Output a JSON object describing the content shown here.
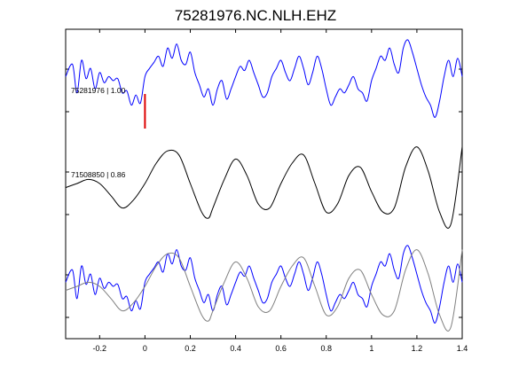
{
  "chart_data": {
    "type": "line",
    "title": "75281976.NC.NLH.EHZ",
    "xlabel": "",
    "ylabel": "",
    "xlim": [
      -0.35,
      1.4
    ],
    "x_ticks": [
      -0.2,
      0,
      0.2,
      0.4,
      0.6,
      0.8,
      1,
      1.2,
      1.4
    ],
    "x_tick_labels": [
      "-0.2",
      "0",
      "0.2",
      "0.4",
      "0.6",
      "0.8",
      "1",
      "1.2",
      "1.4"
    ],
    "grid": false,
    "pick_time": 0,
    "panels": [
      {
        "label": "75281976 | 1.00",
        "series": [
          {
            "color": "#0000ff",
            "x": [
              -0.35,
              -0.32,
              -0.3,
              -0.28,
              -0.26,
              -0.24,
              -0.22,
              -0.2,
              -0.18,
              -0.16,
              -0.14,
              -0.12,
              -0.1,
              -0.08,
              -0.06,
              -0.04,
              -0.02,
              0.0,
              0.02,
              0.04,
              0.06,
              0.08,
              0.1,
              0.12,
              0.14,
              0.16,
              0.18,
              0.2,
              0.22,
              0.24,
              0.26,
              0.28,
              0.3,
              0.32,
              0.34,
              0.36,
              0.38,
              0.4,
              0.42,
              0.44,
              0.46,
              0.48,
              0.5,
              0.52,
              0.54,
              0.56,
              0.58,
              0.6,
              0.62,
              0.64,
              0.66,
              0.68,
              0.7,
              0.72,
              0.74,
              0.76,
              0.78,
              0.8,
              0.82,
              0.84,
              0.86,
              0.88,
              0.9,
              0.92,
              0.94,
              0.96,
              0.98,
              1.0,
              1.02,
              1.04,
              1.06,
              1.08,
              1.1,
              1.12,
              1.14,
              1.16,
              1.18,
              1.2,
              1.22,
              1.24,
              1.26,
              1.28,
              1.3,
              1.32,
              1.34,
              1.36,
              1.38,
              1.4
            ],
            "y": [
              0.1,
              0.4,
              -0.3,
              0.5,
              0.05,
              0.3,
              -0.2,
              0.2,
              -0.05,
              0.1,
              0.0,
              0.05,
              -0.3,
              -0.25,
              -0.6,
              -0.35,
              -0.55,
              0.1,
              0.3,
              0.45,
              0.6,
              0.35,
              0.8,
              0.55,
              0.9,
              0.5,
              0.4,
              0.7,
              0.2,
              -0.1,
              -0.4,
              -0.2,
              -0.6,
              -0.2,
              0.0,
              -0.45,
              -0.2,
              0.1,
              0.35,
              0.25,
              0.5,
              0.2,
              -0.1,
              -0.4,
              -0.3,
              0.1,
              0.3,
              0.5,
              0.2,
              0.0,
              0.3,
              0.6,
              0.3,
              -0.1,
              0.2,
              0.6,
              0.3,
              -0.2,
              -0.6,
              -0.4,
              -0.2,
              -0.3,
              -0.1,
              0.1,
              -0.2,
              -0.3,
              -0.5,
              0.0,
              0.3,
              0.6,
              0.5,
              0.8,
              0.4,
              0.2,
              0.8,
              1.0,
              0.7,
              0.3,
              -0.1,
              -0.4,
              -0.6,
              -0.9,
              -0.5,
              0.1,
              0.5,
              0.1,
              0.55,
              0.1
            ]
          }
        ]
      },
      {
        "label": "71508850 | 0.86",
        "series": [
          {
            "color": "#000000",
            "x": [
              -0.35,
              -0.3,
              -0.25,
              -0.2,
              -0.15,
              -0.1,
              -0.05,
              0.0,
              0.05,
              0.1,
              0.15,
              0.2,
              0.25,
              0.28,
              0.3,
              0.35,
              0.4,
              0.45,
              0.5,
              0.55,
              0.6,
              0.65,
              0.7,
              0.75,
              0.8,
              0.85,
              0.9,
              0.95,
              1.0,
              1.05,
              1.1,
              1.15,
              1.2,
              1.25,
              1.3,
              1.35,
              1.4
            ],
            "y": [
              -0.1,
              0.0,
              0.1,
              0.0,
              -0.3,
              -0.6,
              -0.4,
              0.0,
              0.5,
              0.8,
              0.7,
              0.0,
              -0.7,
              -0.85,
              -0.6,
              0.1,
              0.6,
              0.2,
              -0.5,
              -0.6,
              0.0,
              0.5,
              0.7,
              0.0,
              -0.7,
              -0.5,
              0.2,
              0.4,
              -0.2,
              -0.7,
              -0.6,
              0.4,
              0.9,
              0.3,
              -0.7,
              -1.0,
              0.9
            ]
          }
        ]
      },
      {
        "label": "",
        "series": [
          {
            "color": "#0000ff",
            "x": [
              -0.35,
              -0.32,
              -0.3,
              -0.28,
              -0.26,
              -0.24,
              -0.22,
              -0.2,
              -0.18,
              -0.16,
              -0.14,
              -0.12,
              -0.1,
              -0.08,
              -0.06,
              -0.04,
              -0.02,
              0.0,
              0.02,
              0.04,
              0.06,
              0.08,
              0.1,
              0.12,
              0.14,
              0.16,
              0.18,
              0.2,
              0.22,
              0.24,
              0.26,
              0.28,
              0.3,
              0.32,
              0.34,
              0.36,
              0.38,
              0.4,
              0.42,
              0.44,
              0.46,
              0.48,
              0.5,
              0.52,
              0.54,
              0.56,
              0.58,
              0.6,
              0.62,
              0.64,
              0.66,
              0.68,
              0.7,
              0.72,
              0.74,
              0.76,
              0.78,
              0.8,
              0.82,
              0.84,
              0.86,
              0.88,
              0.9,
              0.92,
              0.94,
              0.96,
              0.98,
              1.0,
              1.02,
              1.04,
              1.06,
              1.08,
              1.1,
              1.12,
              1.14,
              1.16,
              1.18,
              1.2,
              1.22,
              1.24,
              1.26,
              1.28,
              1.3,
              1.32,
              1.34,
              1.36,
              1.38,
              1.4
            ],
            "y": [
              0.1,
              0.4,
              -0.3,
              0.5,
              0.05,
              0.3,
              -0.2,
              0.2,
              -0.05,
              0.1,
              0.0,
              0.05,
              -0.3,
              -0.25,
              -0.6,
              -0.35,
              -0.55,
              0.1,
              0.3,
              0.45,
              0.6,
              0.35,
              0.8,
              0.55,
              0.9,
              0.5,
              0.4,
              0.7,
              0.2,
              -0.1,
              -0.4,
              -0.2,
              -0.6,
              -0.2,
              0.0,
              -0.45,
              -0.2,
              0.1,
              0.35,
              0.25,
              0.5,
              0.2,
              -0.1,
              -0.4,
              -0.3,
              0.1,
              0.3,
              0.5,
              0.2,
              0.0,
              0.3,
              0.6,
              0.3,
              -0.1,
              0.2,
              0.6,
              0.3,
              -0.2,
              -0.6,
              -0.4,
              -0.2,
              -0.3,
              -0.1,
              0.1,
              -0.2,
              -0.3,
              -0.5,
              0.0,
              0.3,
              0.6,
              0.5,
              0.8,
              0.4,
              0.2,
              0.8,
              1.0,
              0.7,
              0.3,
              -0.1,
              -0.4,
              -0.6,
              -0.9,
              -0.5,
              0.1,
              0.5,
              0.1,
              0.55,
              0.1
            ]
          },
          {
            "color": "#808080",
            "x": [
              -0.35,
              -0.3,
              -0.25,
              -0.2,
              -0.15,
              -0.1,
              -0.05,
              0.0,
              0.05,
              0.1,
              0.15,
              0.2,
              0.25,
              0.28,
              0.3,
              0.35,
              0.4,
              0.45,
              0.5,
              0.55,
              0.6,
              0.65,
              0.7,
              0.75,
              0.8,
              0.85,
              0.9,
              0.95,
              1.0,
              1.05,
              1.1,
              1.15,
              1.2,
              1.25,
              1.3,
              1.35,
              1.4
            ],
            "y": [
              -0.1,
              0.0,
              0.1,
              0.0,
              -0.3,
              -0.6,
              -0.4,
              0.0,
              0.5,
              0.8,
              0.7,
              0.0,
              -0.7,
              -0.85,
              -0.6,
              0.1,
              0.6,
              0.2,
              -0.5,
              -0.6,
              0.0,
              0.5,
              0.7,
              0.0,
              -0.7,
              -0.5,
              0.2,
              0.4,
              -0.2,
              -0.7,
              -0.6,
              0.4,
              0.9,
              0.3,
              -0.7,
              -1.0,
              0.9
            ]
          }
        ]
      }
    ]
  }
}
